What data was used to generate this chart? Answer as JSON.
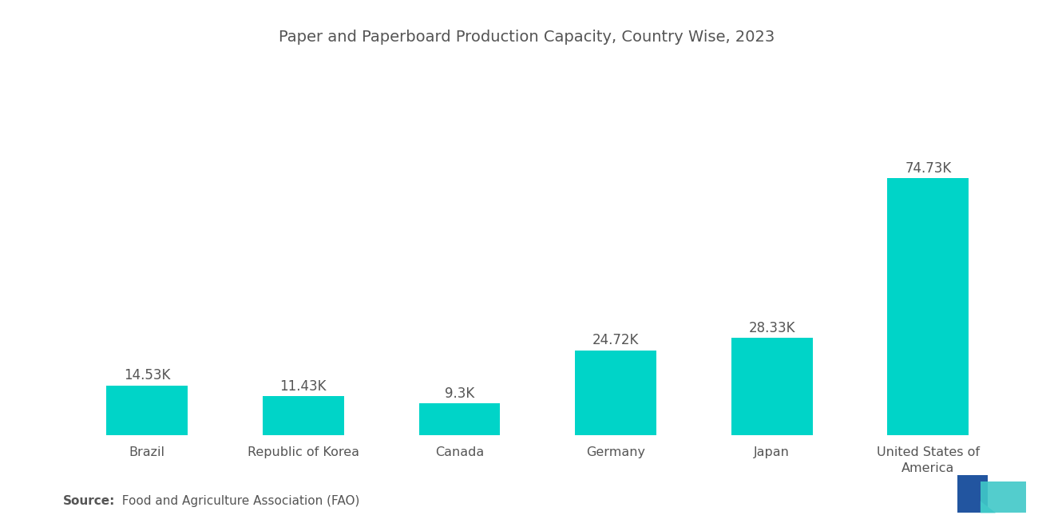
{
  "title": "Paper and Paperboard Production Capacity, Country Wise, 2023",
  "categories": [
    "Brazil",
    "Republic of Korea",
    "Canada",
    "Germany",
    "Japan",
    "United States of\nAmerica"
  ],
  "values": [
    14.53,
    11.43,
    9.3,
    24.72,
    28.33,
    74.73
  ],
  "labels": [
    "14.53K",
    "11.43K",
    "9.3K",
    "24.72K",
    "28.33K",
    "74.73K"
  ],
  "bar_color": "#00D4C8",
  "background_color": "#ffffff",
  "title_fontsize": 14,
  "label_fontsize": 12,
  "tick_fontsize": 11.5,
  "source_bold": "Source:",
  "source_normal": "  Food and Agriculture Association (FAO)",
  "source_fontsize": 11,
  "ylim_max": 105,
  "bar_width": 0.52
}
